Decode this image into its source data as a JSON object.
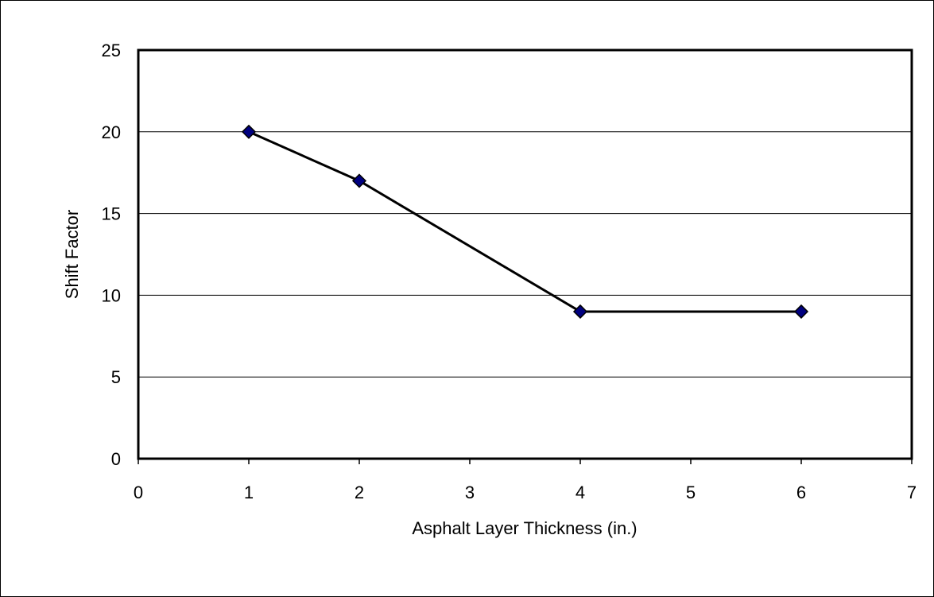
{
  "chart_data": {
    "type": "line",
    "title": "",
    "xlabel": "Asphalt Layer Thickness (in.)",
    "ylabel": "Shift Factor",
    "xlim": [
      0,
      7
    ],
    "ylim": [
      0,
      25
    ],
    "x_ticks": [
      0,
      1,
      2,
      3,
      4,
      5,
      6,
      7
    ],
    "y_ticks": [
      0,
      5,
      10,
      15,
      20,
      25
    ],
    "grid": "horizontal",
    "legend": "none",
    "series": [
      {
        "x": [
          1,
          2,
          4,
          6
        ],
        "y": [
          20,
          17,
          9,
          9
        ],
        "marker": "diamond",
        "marker_color": "#000080",
        "line_color": "#000000"
      }
    ]
  }
}
